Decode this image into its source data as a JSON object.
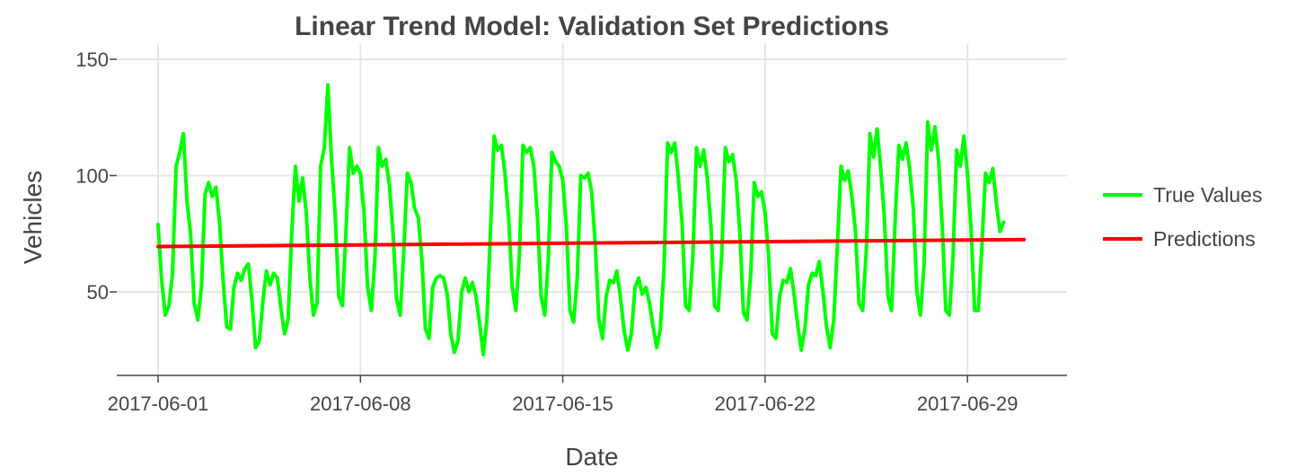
{
  "chart_data": {
    "type": "line",
    "title": "Linear Trend Model: Validation Set Predictions",
    "xlabel": "Date",
    "ylabel": "Vehicles",
    "x_range": [
      "2017-06-01",
      "2017-06-30T23:00"
    ],
    "ylim": [
      15,
      150
    ],
    "x_ticks": [
      "2017-06-01",
      "2017-06-08",
      "2017-06-15",
      "2017-06-22",
      "2017-06-29"
    ],
    "y_ticks": [
      50,
      100,
      150
    ],
    "grid": true,
    "legend": "right",
    "series": [
      {
        "name": "True Values",
        "color": "#00ff00",
        "x_start": "2017-06-01T00:00",
        "x_step_hours": 3,
        "values": [
          79,
          55,
          40,
          44,
          58,
          104,
          110,
          118,
          89,
          75,
          45,
          38,
          52,
          92,
          97,
          91,
          95,
          80,
          55,
          35,
          34,
          52,
          58,
          55,
          60,
          62,
          46,
          26,
          29,
          46,
          59,
          53,
          58,
          56,
          43,
          32,
          38,
          76,
          104,
          89,
          99,
          84,
          56,
          40,
          45,
          104,
          112,
          139,
          107,
          84,
          48,
          44,
          76,
          112,
          101,
          104,
          101,
          84,
          52,
          42,
          64,
          112,
          104,
          107,
          96,
          76,
          47,
          40,
          68,
          101,
          97,
          86,
          82,
          64,
          34,
          30,
          52,
          56,
          57,
          56,
          49,
          32,
          24,
          29,
          50,
          56,
          50,
          54,
          48,
          36,
          23,
          38,
          76,
          117,
          111,
          113,
          101,
          82,
          52,
          42,
          66,
          113,
          110,
          112,
          104,
          82,
          48,
          40,
          64,
          110,
          106,
          104,
          98,
          78,
          42,
          37,
          56,
          100,
          99,
          101,
          93,
          70,
          38,
          30,
          48,
          55,
          54,
          59,
          47,
          33,
          25,
          32,
          52,
          56,
          49,
          52,
          45,
          35,
          26,
          34,
          60,
          114,
          110,
          114,
          99,
          80,
          44,
          42,
          65,
          112,
          104,
          111,
          99,
          78,
          44,
          42,
          66,
          112,
          106,
          109,
          98,
          76,
          41,
          38,
          57,
          97,
          91,
          93,
          84,
          65,
          32,
          30,
          48,
          55,
          54,
          60,
          49,
          36,
          25,
          34,
          53,
          58,
          57,
          63,
          50,
          35,
          26,
          38,
          70,
          104,
          98,
          102,
          91,
          76,
          45,
          42,
          68,
          118,
          108,
          120,
          103,
          82,
          48,
          42,
          81,
          113,
          107,
          114,
          103,
          86,
          50,
          40,
          62,
          123,
          111,
          121,
          107,
          79,
          42,
          40,
          65,
          111,
          104,
          117,
          101,
          77,
          42,
          42,
          70,
          101,
          97,
          103,
          88,
          76,
          80
        ]
      },
      {
        "name": "Predictions",
        "color": "#ff0000",
        "x": [
          "2017-06-01T00:00",
          "2017-06-30T23:00"
        ],
        "values": [
          69.5,
          72.5
        ]
      }
    ]
  }
}
